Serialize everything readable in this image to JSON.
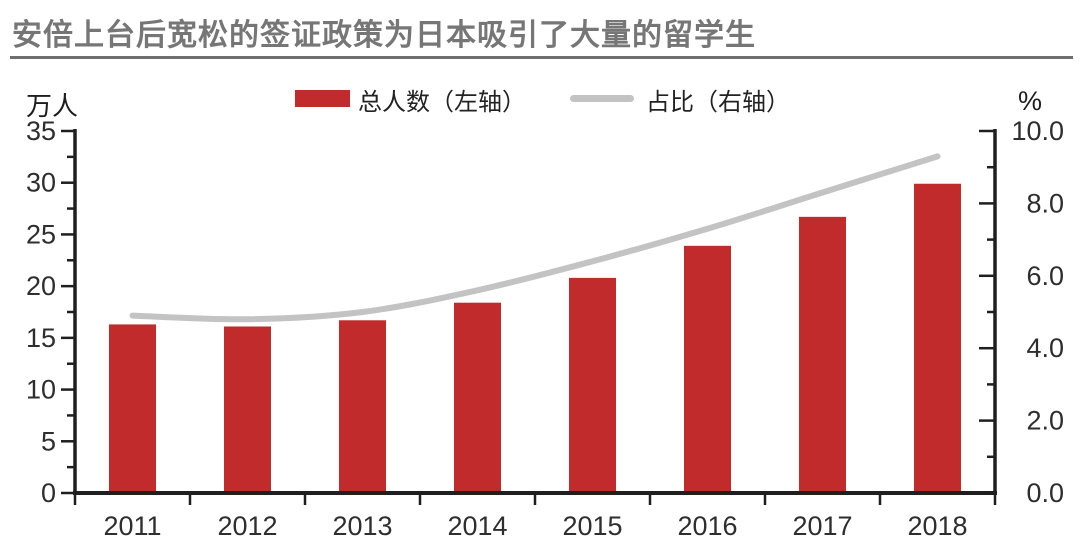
{
  "header": {
    "title": "安倍上台后宽松的签证政策为日本吸引了大量的留学生"
  },
  "legend": {
    "bar_label": "总人数（左轴）",
    "line_label": "占比（右轴）"
  },
  "axes": {
    "left_unit": "万人",
    "right_unit": "%"
  },
  "colors": {
    "bar": "#c22b2b",
    "line": "#c3c3c3",
    "axis": "#1f1f1f",
    "tick_label": "#2e2e2e",
    "title": "#767676"
  },
  "chart_data": {
    "type": "combo",
    "categories": [
      "2011",
      "2012",
      "2013",
      "2014",
      "2015",
      "2016",
      "2017",
      "2018"
    ],
    "series": [
      {
        "name": "总人数（左轴）",
        "type": "bar",
        "axis": "left",
        "unit": "万人",
        "values": [
          16.3,
          16.1,
          16.7,
          18.4,
          20.8,
          23.9,
          26.7,
          29.9
        ]
      },
      {
        "name": "占比（右轴）",
        "type": "line",
        "axis": "right",
        "unit": "%",
        "values": [
          4.9,
          4.8,
          5.0,
          5.6,
          6.4,
          7.3,
          8.3,
          9.3
        ]
      }
    ],
    "left_axis": {
      "min": 0,
      "max": 35,
      "step": 5,
      "minor_step": 2.5,
      "tick_labels": [
        "0",
        "5",
        "10",
        "15",
        "20",
        "25",
        "30",
        "35"
      ]
    },
    "right_axis": {
      "min": 0,
      "max": 10,
      "step": 2,
      "minor_step": 1,
      "tick_labels": [
        "0.0",
        "2.0",
        "4.0",
        "6.0",
        "8.0",
        "10.0"
      ]
    },
    "grid": false,
    "legend_position": "top-center"
  }
}
